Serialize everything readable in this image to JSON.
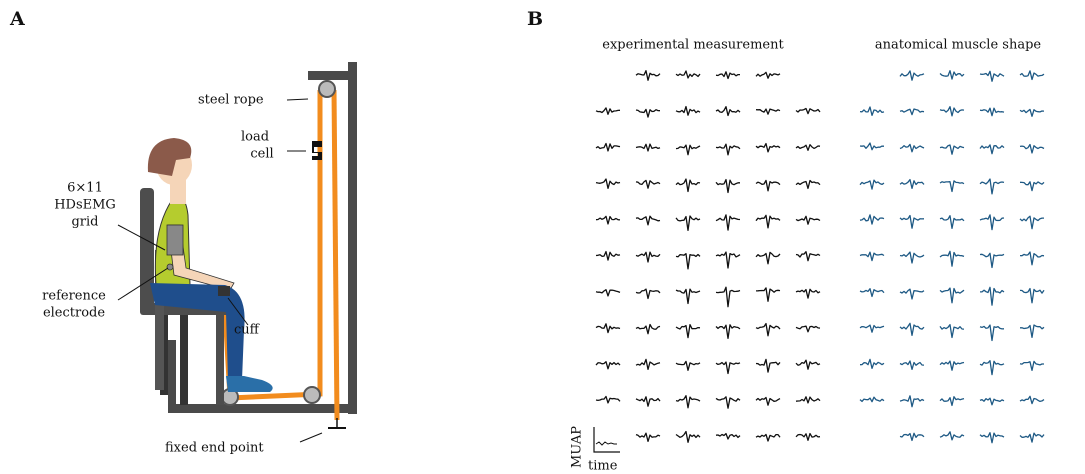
{
  "panels": {
    "a": "A",
    "b": "B"
  },
  "setup": {
    "steel_rope": "steel rope",
    "load_cell": [
      "load",
      "cell"
    ],
    "grid": [
      "6×11",
      "HDsEMG",
      "grid"
    ],
    "reference": [
      "reference",
      "electrode"
    ],
    "cuff": "cuff",
    "fixed_end": "fixed end point"
  },
  "muap": {
    "left_title": "experimental measurement",
    "right_title": "anatomical muscle shape",
    "y_axis": "MUAP",
    "x_axis": "time"
  }
}
